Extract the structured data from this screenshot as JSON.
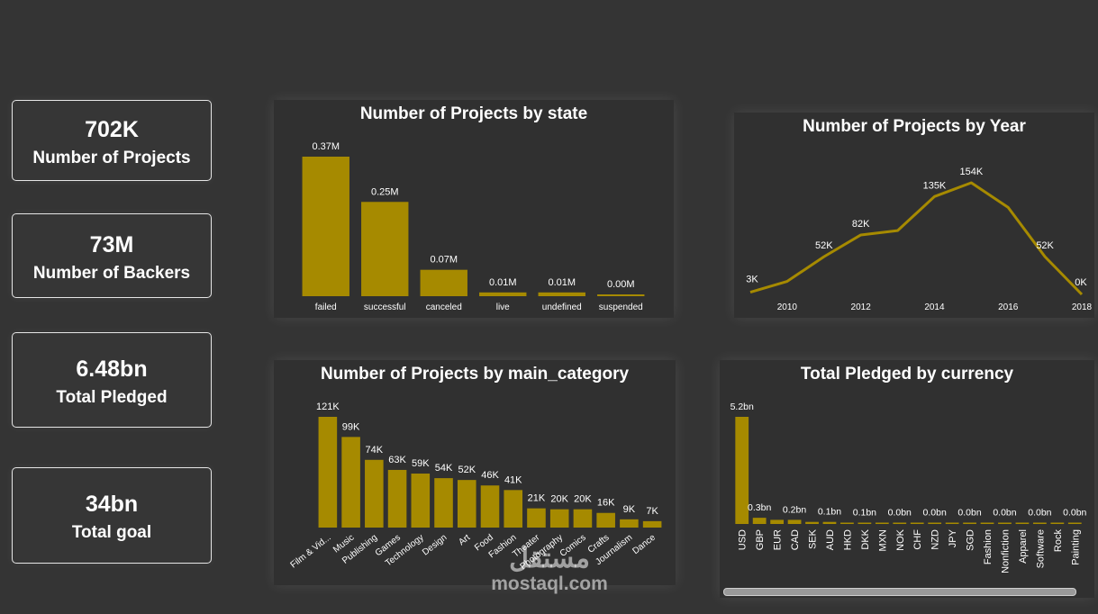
{
  "kpis": [
    {
      "value": "702K",
      "label": "Number of Projects"
    },
    {
      "value": "73M",
      "label": "Number of Backers"
    },
    {
      "value": "6.48bn",
      "label": "Total Pledged"
    },
    {
      "value": "34bn",
      "label": "Total goal"
    }
  ],
  "watermark": {
    "line1": "مستقل",
    "line2": "mostaql.com"
  },
  "colors": {
    "bar": "#a68a00",
    "background": "#343434",
    "panel": "#303030"
  },
  "chart_data": [
    {
      "id": "state",
      "type": "bar",
      "title": "Number of Projects by state",
      "categories": [
        "failed",
        "successful",
        "canceled",
        "live",
        "undefined",
        "suspended"
      ],
      "values": [
        370000,
        250000,
        70000,
        10000,
        10000,
        2000
      ],
      "labels": [
        "0.37M",
        "0.25M",
        "0.07M",
        "0.01M",
        "0.01M",
        "0.00M"
      ],
      "ylim": [
        0,
        370000
      ]
    },
    {
      "id": "year",
      "type": "line",
      "title": "Number of Projects by Year",
      "x": [
        2009,
        2010,
        2011,
        2012,
        2013,
        2014,
        2015,
        2016,
        2017,
        2018
      ],
      "values": [
        3000,
        18000,
        52000,
        82000,
        88000,
        135000,
        154000,
        120000,
        52000,
        0
      ],
      "point_labels": [
        "3K",
        "",
        "52K",
        "82K",
        "",
        "135K",
        "154K",
        "",
        "52K",
        "0K"
      ],
      "x_ticks": [
        2010,
        2012,
        2014,
        2016,
        2018
      ],
      "ylim": [
        0,
        154000
      ]
    },
    {
      "id": "category",
      "type": "bar",
      "title": "Number of Projects by main_category",
      "categories": [
        "Film & Vid...",
        "Music",
        "Publishing",
        "Games",
        "Technology",
        "Design",
        "Art",
        "Food",
        "Fashion",
        "Theater",
        "Photography",
        "Comics",
        "Crafts",
        "Journalism",
        "Dance"
      ],
      "values": [
        121000,
        99000,
        74000,
        63000,
        59000,
        54000,
        52000,
        46000,
        41000,
        21000,
        20000,
        20000,
        16000,
        9000,
        7000
      ],
      "labels": [
        "121K",
        "99K",
        "74K",
        "63K",
        "59K",
        "54K",
        "52K",
        "46K",
        "41K",
        "21K",
        "20K",
        "20K",
        "16K",
        "9K",
        "7K"
      ],
      "ylim": [
        0,
        121000
      ]
    },
    {
      "id": "currency",
      "type": "bar",
      "title": "Total Pledged by currency",
      "categories": [
        "USD",
        "GBP",
        "EUR",
        "CAD",
        "SEK",
        "AUD",
        "HKD",
        "DKK",
        "MXN",
        "NOK",
        "CHF",
        "NZD",
        "JPY",
        "SGD",
        "Fashion",
        "Nonfiction",
        "Apparel",
        "Software",
        "Rock",
        "Painting"
      ],
      "values": [
        5.2,
        0.3,
        0.2,
        0.2,
        0.1,
        0.1,
        0.05,
        0.05,
        0.02,
        0.01,
        0.01,
        0.01,
        0.01,
        0.01,
        0,
        0,
        0,
        0,
        0,
        0
      ],
      "labels": [
        "5.2bn",
        "0.3bn",
        "",
        "0.2bn",
        "",
        "0.1bn",
        "",
        "0.1bn",
        "",
        "0.0bn",
        "",
        "0.0bn",
        "",
        "0.0bn",
        "",
        "0.0bn",
        "",
        "0.0bn",
        "",
        "0.0bn"
      ],
      "ylim": [
        0,
        5.2
      ]
    }
  ]
}
